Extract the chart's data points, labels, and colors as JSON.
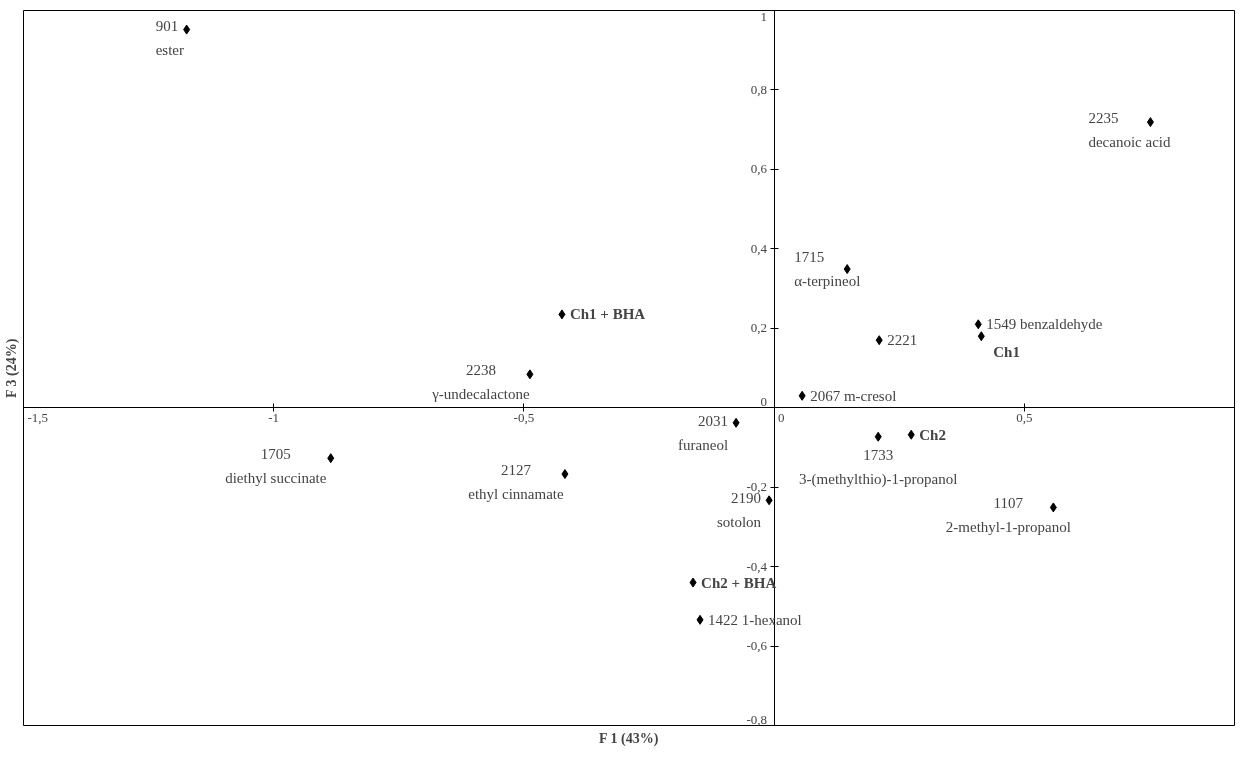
{
  "chart_data": {
    "type": "scatter",
    "xlabel": "F 1 (43%)",
    "ylabel": "F 3 (24%)",
    "x": [
      -1.174,
      0.752,
      0.146,
      0.408,
      0.414,
      0.21,
      -0.424,
      -0.488,
      0.056,
      -0.076,
      0.208,
      0.274,
      -0.886,
      -0.418,
      -0.01,
      0.558,
      -0.162,
      -0.148
    ],
    "series": [
      {
        "color": "#000000",
        "values": [
          0.952,
          0.719,
          0.349,
          0.21,
          0.18,
          0.17,
          0.235,
          0.084,
          0.03,
          -0.038,
          -0.073,
          -0.068,
          -0.127,
          -0.167,
          -0.233,
          -0.251,
          -0.44,
          -0.534
        ]
      }
    ],
    "annotations": [
      {
        "text": "901\nester",
        "x": -1.174,
        "y": 0.952
      },
      {
        "text": "2235\ndecanoic acid",
        "x": 0.752,
        "y": 0.719
      },
      {
        "text": "1715\nα-terpineol",
        "x": 0.146,
        "y": 0.349
      },
      {
        "text": "1549 benzaldehyde",
        "x": 0.408,
        "y": 0.21
      },
      {
        "text": "Ch1",
        "x": 0.414,
        "y": 0.18
      },
      {
        "text": "2221",
        "x": 0.21,
        "y": 0.17
      },
      {
        "text": "Ch1 + BHA",
        "x": -0.424,
        "y": 0.235
      },
      {
        "text": "2238\nγ-undecalactone",
        "x": -0.488,
        "y": 0.084
      },
      {
        "text": "2067 m-cresol",
        "x": 0.056,
        "y": 0.03
      },
      {
        "text": "2031\nfuraneol",
        "x": -0.076,
        "y": -0.038
      },
      {
        "text": "1733\n3-(methylthio)-1-propanol",
        "x": 0.208,
        "y": -0.073
      },
      {
        "text": "Ch2",
        "x": 0.274,
        "y": -0.068
      },
      {
        "text": "1705\ndiethyl succinate",
        "x": -0.886,
        "y": -0.127
      },
      {
        "text": "2127\nethyl cinnamate",
        "x": -0.418,
        "y": -0.167
      },
      {
        "text": "2190\nsotolon",
        "x": -0.01,
        "y": -0.233
      },
      {
        "text": "1107\n2-methyl-1-propanol",
        "x": 0.558,
        "y": -0.251
      },
      {
        "text": "Ch2 + BHA",
        "x": -0.162,
        "y": -0.44
      },
      {
        "text": "1422 1-hexanol",
        "x": -0.148,
        "y": -0.534
      }
    ],
    "xlim": [
      -1.5,
      0.92
    ],
    "ylim": [
      -0.8,
      1
    ],
    "xticks": [
      {
        "value": -1.5,
        "label": "-1,5"
      },
      -1,
      {
        "value": -0.5,
        "label": "-0,5"
      },
      0,
      {
        "value": 0.5,
        "label": "0,5"
      }
    ],
    "yticks": [
      {
        "value": -0.8,
        "label": "-0,8"
      },
      {
        "value": -0.6,
        "label": "-0,6"
      },
      {
        "value": -0.4,
        "label": "-0,4"
      },
      {
        "value": -0.2,
        "label": "-0,2"
      },
      0,
      {
        "value": 0.2,
        "label": "0,2"
      },
      {
        "value": 0.4,
        "label": "0,4"
      },
      {
        "value": 0.6,
        "label": "0,6"
      },
      {
        "value": 0.8,
        "label": "0,8"
      },
      1
    ],
    "marker": "diamond",
    "grid": false
  }
}
